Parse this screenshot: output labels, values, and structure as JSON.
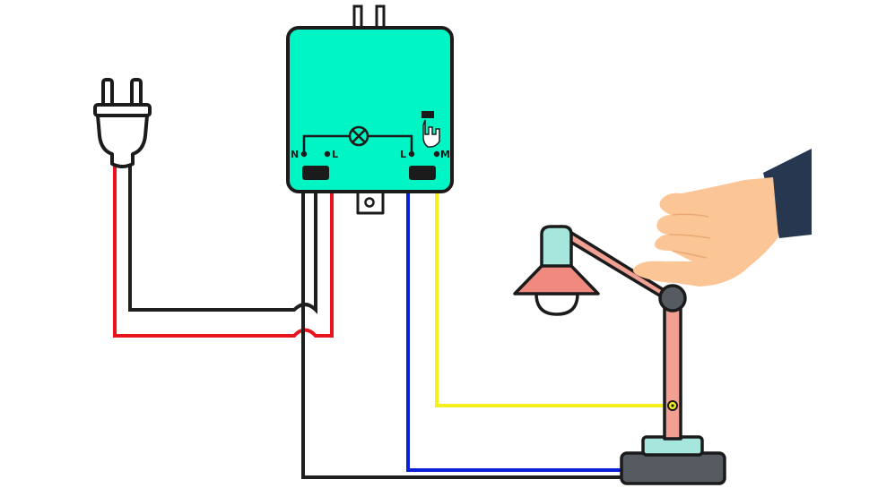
{
  "diagram": {
    "terminals": {
      "neutral_left": "N",
      "line_left": "L",
      "line_right": "L",
      "motor": "M"
    },
    "colors": {
      "module_body": "#00f5c4",
      "outline": "#1b1b1b",
      "wire_black": "#1f1f1f",
      "wire_red": "#e8141b",
      "wire_blue": "#0a1fd6",
      "wire_yellow": "#f6f01a",
      "lamp_arm": "#f2a094",
      "lamp_shade": "#f08a7e",
      "lamp_cap": "#a6e6dc",
      "lamp_base": "#565a61",
      "hand_skin": "#fbc596",
      "sleeve": "#27374f"
    },
    "icons": {
      "plug": "plug-icon",
      "lamp_symbol": "lamp-circle-x-icon",
      "touch_symbol": "touch-hand-icon",
      "hand": "pointing-hand-icon",
      "desk_lamp": "desk-lamp-icon"
    }
  }
}
